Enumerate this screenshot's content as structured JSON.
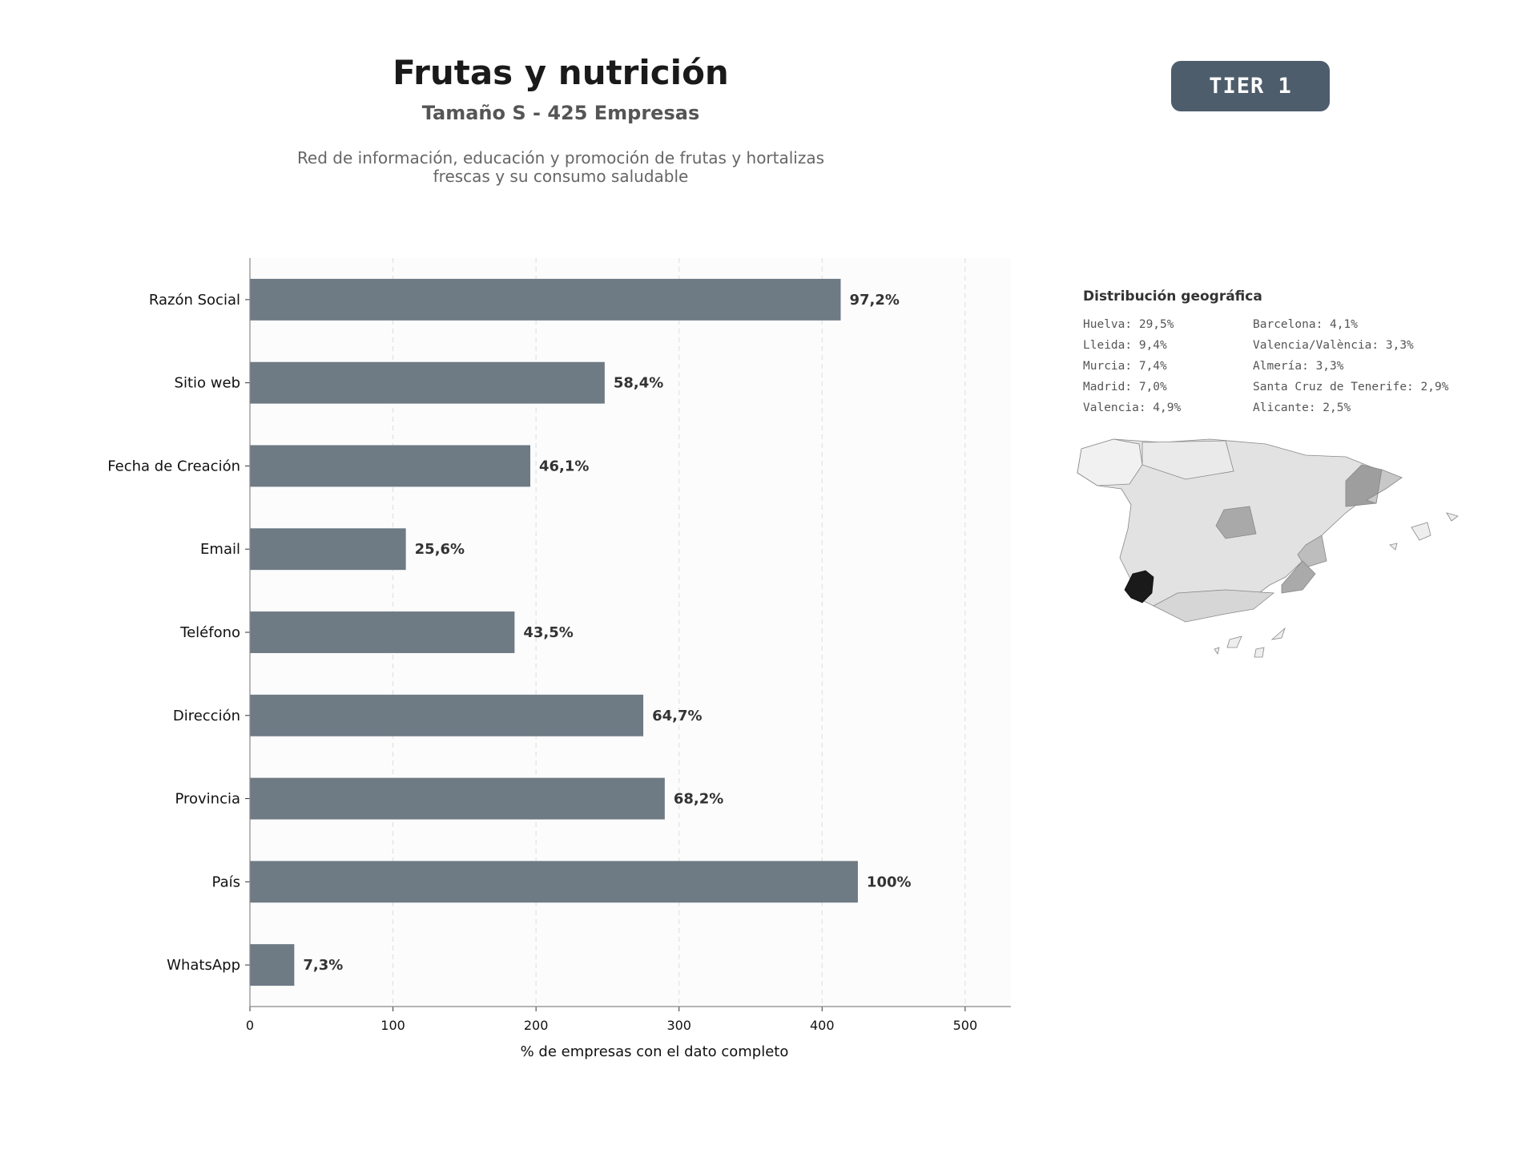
{
  "header": {
    "title": "Frutas y nutrición",
    "subtitle": "Tamaño S - 425 Empresas",
    "description_line1": "Red de información, educación y promoción de frutas y hortalizas",
    "description_line2": "frescas y su consumo saludable",
    "tier": "TIER 1"
  },
  "chart_data": {
    "type": "bar",
    "orientation": "horizontal",
    "categories": [
      "Razón Social",
      "Sitio web",
      "Fecha de Creación",
      "Email",
      "Teléfono",
      "Dirección",
      "Provincia",
      "País",
      "WhatsApp"
    ],
    "values": [
      413,
      248,
      196,
      109,
      185,
      275,
      290,
      425,
      31
    ],
    "data_labels": [
      "97,2%",
      "58,4%",
      "46,1%",
      "25,6%",
      "43,5%",
      "64,7%",
      "68,2%",
      "100%",
      "7,3%"
    ],
    "xlabel": "% de empresas con el dato completo",
    "ylabel": "",
    "xlim": [
      0,
      532
    ],
    "xticks": [
      0,
      100,
      200,
      300,
      400,
      500
    ],
    "grid": "vertical dashed",
    "bar_color": "#6e7a84"
  },
  "geo": {
    "title": "Distribución geográfica",
    "col1": [
      "Huelva: 29,5%",
      "Lleida: 9,4%",
      "Murcia: 7,4%",
      "Madrid: 7,0%",
      "Valencia: 4,9%"
    ],
    "col2": [
      "Barcelona: 4,1%",
      "Valencia/València: 3,3%",
      "Almería: 3,3%",
      "Santa Cruz de Tenerife: 2,9%",
      "Alicante: 2,5%"
    ]
  }
}
